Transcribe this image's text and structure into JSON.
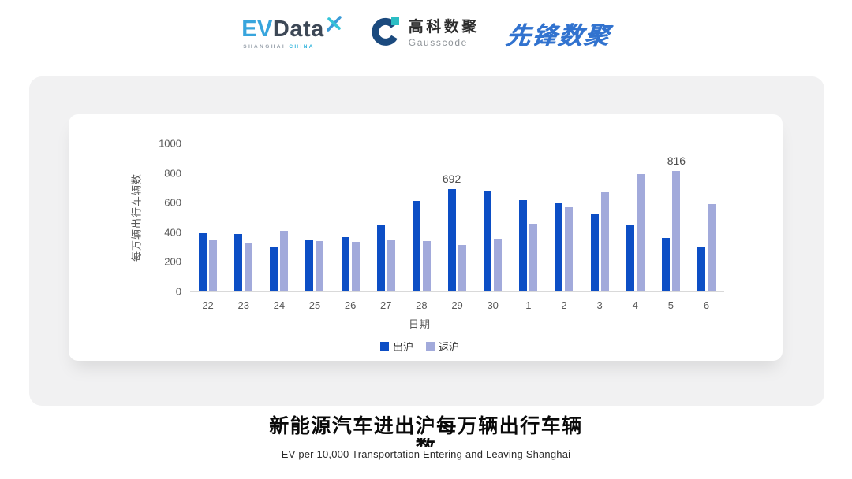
{
  "header": {
    "evdata": {
      "ev": "EV",
      "data": "Data",
      "sub_left": "SHANGHAI",
      "sub_right": "CHINA"
    },
    "gausscode": {
      "cn": "高科数聚",
      "en": "Gausscode"
    },
    "xianfeng": {
      "text": "先锋数聚"
    }
  },
  "icons": {
    "evdata_star": "x-sparkle-icon",
    "gausscode_mark": "g-ring-icon"
  },
  "colors": {
    "bar_dark_blue": "#0c4ec5",
    "bar_light_periwinkle": "#a2aadb",
    "panel_gray": "#f1f1f2",
    "axis_text": "#595959",
    "logo_blue": "#3273cf",
    "logo_teal": "#2bbdc4"
  },
  "chart_data": {
    "type": "bar",
    "title": "",
    "categories": [
      "22",
      "23",
      "24",
      "25",
      "26",
      "27",
      "28",
      "29",
      "30",
      "1",
      "2",
      "3",
      "4",
      "5",
      "6"
    ],
    "series": [
      {
        "name": "出沪",
        "color": "#0c4ec5",
        "values": [
          395,
          388,
          298,
          349,
          366,
          450,
          612,
          692,
          683,
          618,
          595,
          522,
          446,
          364,
          301
        ]
      },
      {
        "name": "返沪",
        "color": "#a2aadb",
        "values": [
          345,
          323,
          407,
          343,
          334,
          347,
          340,
          312,
          357,
          456,
          570,
          668,
          792,
          816,
          588
        ]
      }
    ],
    "annotations": [
      {
        "category": "29",
        "series": "出沪",
        "text": "692"
      },
      {
        "category": "5",
        "series": "返沪",
        "text": "816"
      }
    ],
    "xlabel": "日期",
    "ylabel": "每万辆出行车辆数",
    "ylim": [
      0,
      1000
    ],
    "yticks": [
      0,
      200,
      400,
      600,
      800,
      1000
    ],
    "grid": false,
    "legend_position": "bottom"
  },
  "footer": {
    "title_line1": "新能源汽车进出沪每万辆出行车辆",
    "title_line2": "数",
    "subtitle": "EV per 10,000 Transportation Entering and Leaving Shanghai"
  }
}
